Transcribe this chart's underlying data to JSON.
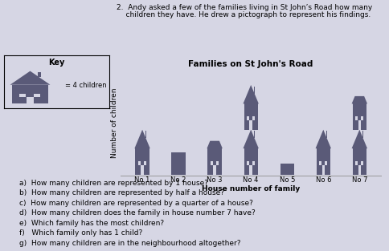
{
  "title": "Families on St John's Road",
  "xlabel": "House number of family",
  "ylabel": "Number of children",
  "houses": [
    "No 1",
    "No 2",
    "No 3",
    "No 4",
    "No 5",
    "No 6",
    "No 7"
  ],
  "values": [
    1.0,
    0.5,
    0.75,
    2.0,
    0.25,
    1.0,
    1.75
  ],
  "house_color": "#5a5a78",
  "bg_color": "#d6d6e4",
  "key_text": "= 4 children",
  "questions": [
    "a)  How many children are represented by 1 house?",
    "b)  How many children are represented by half a house?",
    "c)  How many children are represented by a quarter of a house?",
    "d)  How many children does the family in house number 7 have?",
    "e)  Which family has the most children?",
    "f)   Which family only has 1 child?",
    "g)  How many children are in the neighbourhood altogether?"
  ],
  "intro_line1": "2.  Andy asked a few of the families living in St John’s Road how many",
  "intro_line2": "    children they have. He drew a pictograph to represent his findings.",
  "fontsize_title": 7.5,
  "fontsize_labels": 6.5,
  "fontsize_ticks": 6,
  "fontsize_questions": 6.5,
  "fontsize_intro": 6.5
}
